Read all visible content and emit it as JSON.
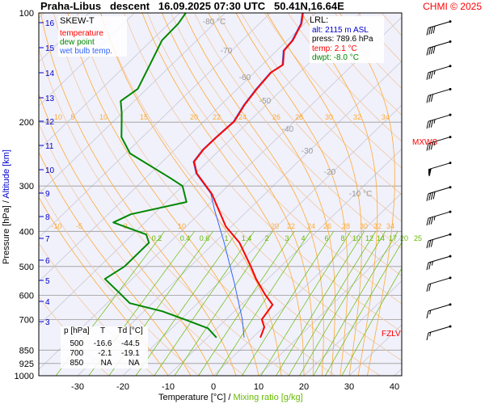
{
  "header": {
    "title": "Praha-Libus   descent   16.09.2025 07:30 UTC   50.41N,16.64E",
    "copyright": "CHMI © 2025"
  },
  "legend": {
    "title": "SKEW-T",
    "temperature": "temperature",
    "dewpoint": "dew point",
    "wetbulb": "wet bulb temp."
  },
  "lrl": {
    "title": "LRL:",
    "alt": "alt: 2115 m ASL",
    "press": "press: 789.6 hPa",
    "temp": "temp: 2.1 °C",
    "dwpt": "dwpt: -8.0 °C"
  },
  "table": {
    "headers": [
      "p [hPa]",
      "T",
      "Td [°C]"
    ],
    "rows": [
      [
        "500",
        "-16.6",
        "-44.5"
      ],
      [
        "700",
        "-2.1",
        "-19.1"
      ],
      [
        "850",
        "NA",
        "NA"
      ]
    ]
  },
  "markers": {
    "mxws": "MXWS",
    "fzlv": "FZLV"
  },
  "colors": {
    "temperature": "#ff0000",
    "dewpoint": "#008800",
    "wetbulb": "#3366ff",
    "altitude": "#0000cc",
    "mixing": "#66bb00",
    "moist": "#ffaa33",
    "dry": "#f0c8a0"
  },
  "chart_data": {
    "type": "line",
    "title": "SKEW-T",
    "xlabel": "Temperature [°C]",
    "xlabel2": "Mixing ratio [g/kg]",
    "xlabel_sep": "/",
    "ylabel": "Pressure [hPa]",
    "ylabel2": "Altitude [km]",
    "ylabel_sep": "/",
    "xlim": [
      -38,
      42
    ],
    "ylim": [
      1000,
      100
    ],
    "x_ticks": [
      "-30",
      "-20",
      "-10",
      "0",
      "10",
      "20",
      "30",
      "40"
    ],
    "p_ticks": [
      "100",
      "200",
      "300",
      "400",
      "500",
      "600",
      "700",
      "850",
      "925",
      "1000"
    ],
    "alt_ticks": [
      "3",
      "4",
      "5",
      "6",
      "7",
      "8",
      "9",
      "10",
      "11",
      "12",
      "13",
      "14",
      "15",
      "16"
    ],
    "isotherm_labels": [
      "-80 °C",
      "-70",
      "-60",
      "-50",
      "-40",
      "-30",
      "-20",
      "-10 °C"
    ],
    "mixing_ratio_labels": [
      "0.2",
      "0.4",
      "0.6",
      "1",
      "1.4",
      "2",
      "3",
      "4",
      "6",
      "8",
      "10",
      "12",
      "14",
      "17",
      "20",
      "25"
    ],
    "moist_labels_upper": [
      "10",
      "5",
      "10",
      "15",
      "20",
      "22",
      "24",
      "26",
      "28",
      "30",
      "32",
      "34"
    ],
    "moist_labels_lower": [
      "-10",
      "-5",
      "0",
      "10",
      "20",
      "22",
      "24",
      "26",
      "28",
      "30",
      "32",
      "34"
    ],
    "series": [
      {
        "name": "temperature",
        "p": [
          785,
          735,
          700,
          637,
          598,
          541,
          500,
          430,
          388,
          340,
          315,
          277,
          257,
          238,
          220,
          199,
          179,
          162,
          146,
          139,
          127,
          119,
          107,
          100
        ],
        "t": [
          1.7,
          0.2,
          -2.1,
          -3.1,
          -7,
          -12.6,
          -16.6,
          -24.5,
          -31.2,
          -37.9,
          -41.8,
          -49.7,
          -53,
          -53.7,
          -53.6,
          -53.3,
          -54.8,
          -55.7,
          -56.3,
          -55.4,
          -58.4,
          -58.8,
          -60.7,
          -62.8
        ]
      },
      {
        "name": "dew point",
        "p": [
          785,
          740,
          700,
          664,
          631,
          598,
          541,
          500,
          430,
          408,
          378,
          359,
          332,
          300,
          285,
          244,
          220,
          189,
          175,
          162,
          139,
          119,
          107,
          100
        ],
        "t": [
          -8,
          -12,
          -19.1,
          -26,
          -35,
          -38.8,
          -46,
          -44.5,
          -44.5,
          -47,
          -57,
          -55,
          -45.5,
          -50,
          -54.6,
          -69,
          -74.6,
          -80,
          -83,
          -82,
          -84.8,
          -87.7,
          -87.9,
          -88.7
        ]
      },
      {
        "name": "wet bulb temp.",
        "p": [
          785,
          700,
          555,
          430,
          349,
          315,
          277,
          257,
          238,
          220,
          199,
          179,
          162,
          146,
          139,
          127,
          119,
          107,
          100
        ],
        "t": [
          -1.9,
          -6.4,
          -16.5,
          -27.9,
          -37.5,
          -42,
          -49.9,
          -53.2,
          -53.9,
          -53.8,
          -53.5,
          -55,
          -55.9,
          -56.5,
          -55.6,
          -58.6,
          -59,
          -60.9,
          -63
        ]
      }
    ],
    "wind": {
      "p": [
        110,
        125,
        146,
        169,
        199,
        229,
        270,
        315,
        368,
        425,
        488,
        560,
        663,
        762
      ],
      "speed_kt": [
        40,
        40,
        35,
        30,
        35,
        35,
        60,
        40,
        35,
        30,
        25,
        20,
        15,
        15
      ]
    }
  }
}
